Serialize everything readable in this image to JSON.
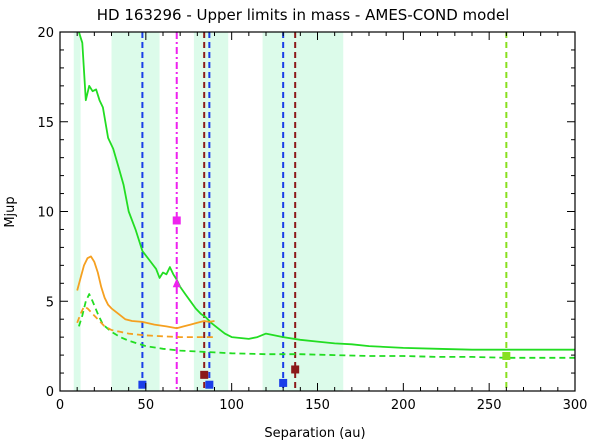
{
  "chart_data": {
    "type": "line",
    "title": "HD 163296 - Upper limits in mass - AMES-COND model",
    "xlabel": "Separation (au)",
    "ylabel": "Mjup",
    "xlim": [
      0,
      300
    ],
    "ylim": [
      0,
      20
    ],
    "x_ticks": [
      0,
      50,
      100,
      150,
      200,
      250,
      300
    ],
    "y_ticks": [
      0,
      5,
      10,
      15,
      20
    ],
    "grid": false,
    "colors": {
      "green_curve": "#22dd22",
      "orange_curve": "#f5a020",
      "shaded_band": "#dcfbea",
      "blue": "#1a3ee8",
      "magenta": "#ee22ee",
      "darkred": "#8b1a1a",
      "yellowgreen": "#88e020"
    },
    "shaded_regions": [
      [
        8,
        12
      ],
      [
        30,
        58
      ],
      [
        78,
        98
      ],
      [
        118,
        165
      ]
    ],
    "series": [
      {
        "color_key": "green_curve",
        "dash": "solid",
        "x": [
          11,
          13,
          15,
          17,
          19,
          21,
          23,
          25,
          28,
          31,
          34,
          37,
          40,
          44,
          48,
          52,
          56,
          58,
          60,
          62,
          64,
          66,
          68,
          70,
          73,
          76,
          79,
          82,
          85,
          88,
          92,
          96,
          100,
          105,
          110,
          115,
          120,
          125,
          130,
          140,
          150,
          160,
          170,
          180,
          200,
          220,
          240,
          260,
          280,
          300
        ],
        "y": [
          20,
          19.4,
          16.2,
          17.0,
          16.7,
          16.8,
          16.2,
          15.8,
          14.1,
          13.5,
          12.5,
          11.5,
          10.0,
          9.0,
          7.8,
          7.3,
          6.8,
          6.3,
          6.6,
          6.5,
          6.9,
          6.5,
          6.2,
          5.8,
          5.4,
          5.0,
          4.6,
          4.3,
          4.1,
          3.8,
          3.5,
          3.2,
          3.0,
          2.95,
          2.9,
          3.0,
          3.2,
          3.1,
          3.0,
          2.85,
          2.75,
          2.65,
          2.6,
          2.5,
          2.4,
          2.35,
          2.3,
          2.3,
          2.3,
          2.3
        ]
      },
      {
        "color_key": "green_curve",
        "dash": "dashed",
        "x": [
          11,
          13,
          15,
          17,
          19,
          22,
          25,
          30,
          35,
          40,
          50,
          60,
          70,
          80,
          90,
          100,
          120,
          140,
          160,
          180,
          200,
          220,
          240,
          260,
          280,
          300
        ],
        "y": [
          3.6,
          4.2,
          5.0,
          5.4,
          5.0,
          4.3,
          3.7,
          3.3,
          3.0,
          2.8,
          2.5,
          2.35,
          2.25,
          2.2,
          2.15,
          2.1,
          2.05,
          2.05,
          2.0,
          1.95,
          1.95,
          1.9,
          1.9,
          1.85,
          1.85,
          1.85
        ]
      },
      {
        "color_key": "orange_curve",
        "dash": "solid",
        "x": [
          10,
          12,
          14,
          16,
          18,
          20,
          22,
          24,
          26,
          28,
          30,
          34,
          38,
          42,
          48,
          55,
          62,
          68,
          72,
          76,
          80,
          84,
          87,
          90
        ],
        "y": [
          5.6,
          6.3,
          7.0,
          7.4,
          7.5,
          7.2,
          6.6,
          5.8,
          5.2,
          4.8,
          4.6,
          4.3,
          4.0,
          3.9,
          3.85,
          3.7,
          3.6,
          3.5,
          3.6,
          3.7,
          3.8,
          3.9,
          3.85,
          3.9
        ]
      },
      {
        "color_key": "orange_curve",
        "dash": "dashed",
        "x": [
          10,
          12,
          14,
          16,
          18,
          20,
          23,
          26,
          30,
          35,
          40,
          50,
          60,
          70,
          80,
          90
        ],
        "y": [
          3.8,
          4.3,
          4.7,
          4.6,
          4.4,
          4.2,
          3.9,
          3.6,
          3.4,
          3.3,
          3.2,
          3.1,
          3.05,
          3.0,
          3.0,
          3.0
        ]
      }
    ],
    "vertical_lines": [
      {
        "x": 48,
        "color_key": "blue",
        "dash": "dashed"
      },
      {
        "x": 68,
        "color_key": "magenta",
        "dash": "dashdot"
      },
      {
        "x": 84,
        "color_key": "darkred",
        "dash": "dashed"
      },
      {
        "x": 87,
        "color_key": "blue",
        "dash": "dashed"
      },
      {
        "x": 130,
        "color_key": "blue",
        "dash": "dashed"
      },
      {
        "x": 137,
        "color_key": "darkred",
        "dash": "dashed"
      },
      {
        "x": 260,
        "color_key": "yellowgreen",
        "dash": "dashed"
      }
    ],
    "markers": [
      {
        "x": 48,
        "y": 0.35,
        "shape": "square",
        "color_key": "blue"
      },
      {
        "x": 87,
        "y": 0.35,
        "shape": "square",
        "color_key": "blue"
      },
      {
        "x": 130,
        "y": 0.45,
        "shape": "square",
        "color_key": "blue"
      },
      {
        "x": 68,
        "y": 9.5,
        "shape": "square",
        "color_key": "magenta"
      },
      {
        "x": 68,
        "y": 6.0,
        "shape": "triangle",
        "color_key": "magenta"
      },
      {
        "x": 84,
        "y": 0.9,
        "shape": "square",
        "color_key": "darkred"
      },
      {
        "x": 137,
        "y": 1.2,
        "shape": "square",
        "color_key": "darkred"
      },
      {
        "x": 260,
        "y": 1.95,
        "shape": "square",
        "color_key": "yellowgreen"
      }
    ]
  }
}
